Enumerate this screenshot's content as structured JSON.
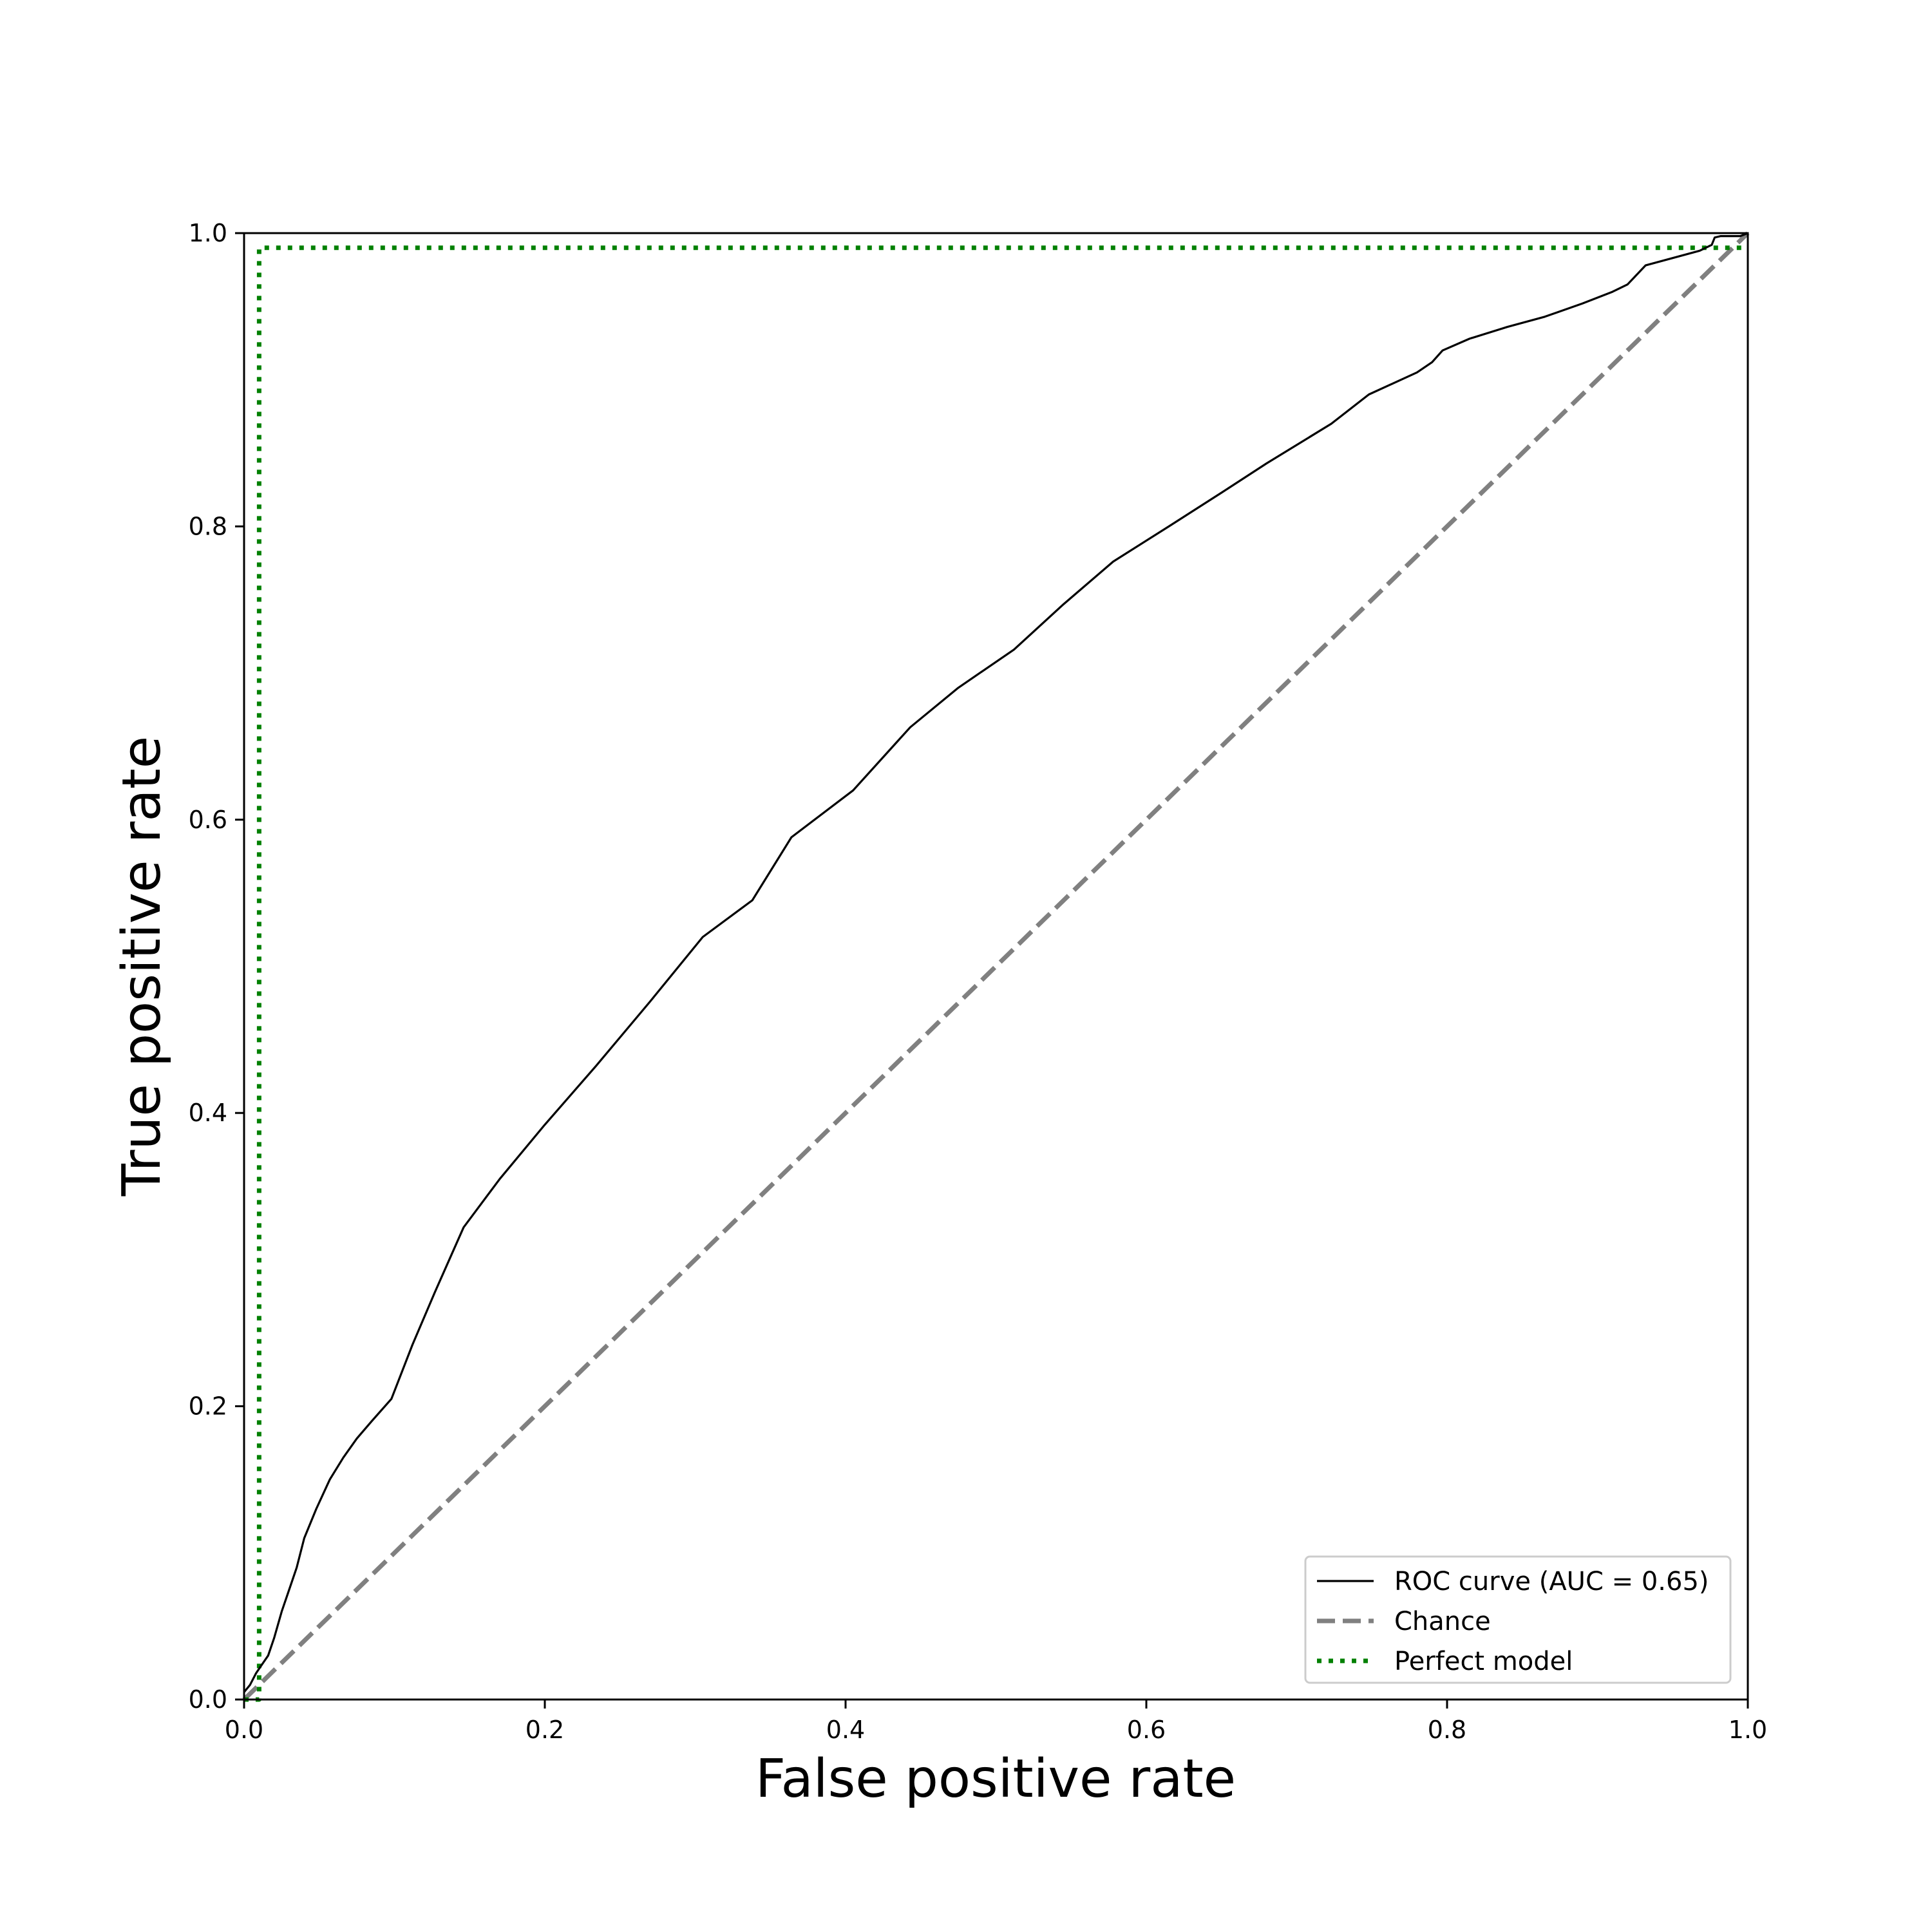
{
  "chart_data": {
    "type": "line",
    "title": "",
    "xlabel": "False positive rate",
    "ylabel": "True positive rate",
    "xlim": [
      0.0,
      1.0
    ],
    "ylim": [
      0.0,
      1.0
    ],
    "xticks": [
      "0.0",
      "0.2",
      "0.4",
      "0.6",
      "0.8",
      "1.0"
    ],
    "yticks": [
      "0.0",
      "0.2",
      "0.4",
      "0.6",
      "0.8",
      "1.0"
    ],
    "grid": false,
    "legend_position": "lower-right",
    "series": [
      {
        "name": "ROC curve (AUC = 0.65)",
        "style": "solid",
        "color": "#000000",
        "x": [
          0.0,
          0.004,
          0.008,
          0.012,
          0.016,
          0.02,
          0.025,
          0.03,
          0.035,
          0.04,
          0.048,
          0.057,
          0.066,
          0.075,
          0.085,
          0.098,
          0.112,
          0.127,
          0.146,
          0.17,
          0.2,
          0.234,
          0.27,
          0.305,
          0.338,
          0.364,
          0.405,
          0.443,
          0.475,
          0.512,
          0.545,
          0.578,
          0.615,
          0.65,
          0.68,
          0.723,
          0.748,
          0.78,
          0.79,
          0.797,
          0.815,
          0.84,
          0.865,
          0.89,
          0.91,
          0.92,
          0.932,
          0.95,
          0.968,
          0.976,
          0.978,
          0.982,
          0.99,
          0.995,
          1.0
        ],
        "y": [
          0.005,
          0.01,
          0.018,
          0.024,
          0.03,
          0.042,
          0.06,
          0.075,
          0.09,
          0.11,
          0.13,
          0.15,
          0.165,
          0.178,
          0.19,
          0.205,
          0.242,
          0.278,
          0.322,
          0.355,
          0.392,
          0.432,
          0.476,
          0.52,
          0.545,
          0.588,
          0.62,
          0.663,
          0.69,
          0.716,
          0.747,
          0.776,
          0.8,
          0.823,
          0.843,
          0.87,
          0.89,
          0.905,
          0.912,
          0.92,
          0.928,
          0.936,
          0.943,
          0.952,
          0.96,
          0.965,
          0.978,
          0.983,
          0.988,
          0.992,
          0.997,
          0.998,
          0.998,
          0.998,
          1.0
        ]
      },
      {
        "name": "Chance",
        "style": "dashed",
        "color": "#808080",
        "x": [
          0.0,
          1.0
        ],
        "y": [
          0.0,
          1.0
        ]
      },
      {
        "name": "Perfect model",
        "style": "dotted",
        "color": "#008000",
        "x": [
          0.0,
          0.01,
          0.01,
          1.0
        ],
        "y": [
          0.0,
          0.0,
          0.99,
          0.99
        ]
      }
    ]
  }
}
